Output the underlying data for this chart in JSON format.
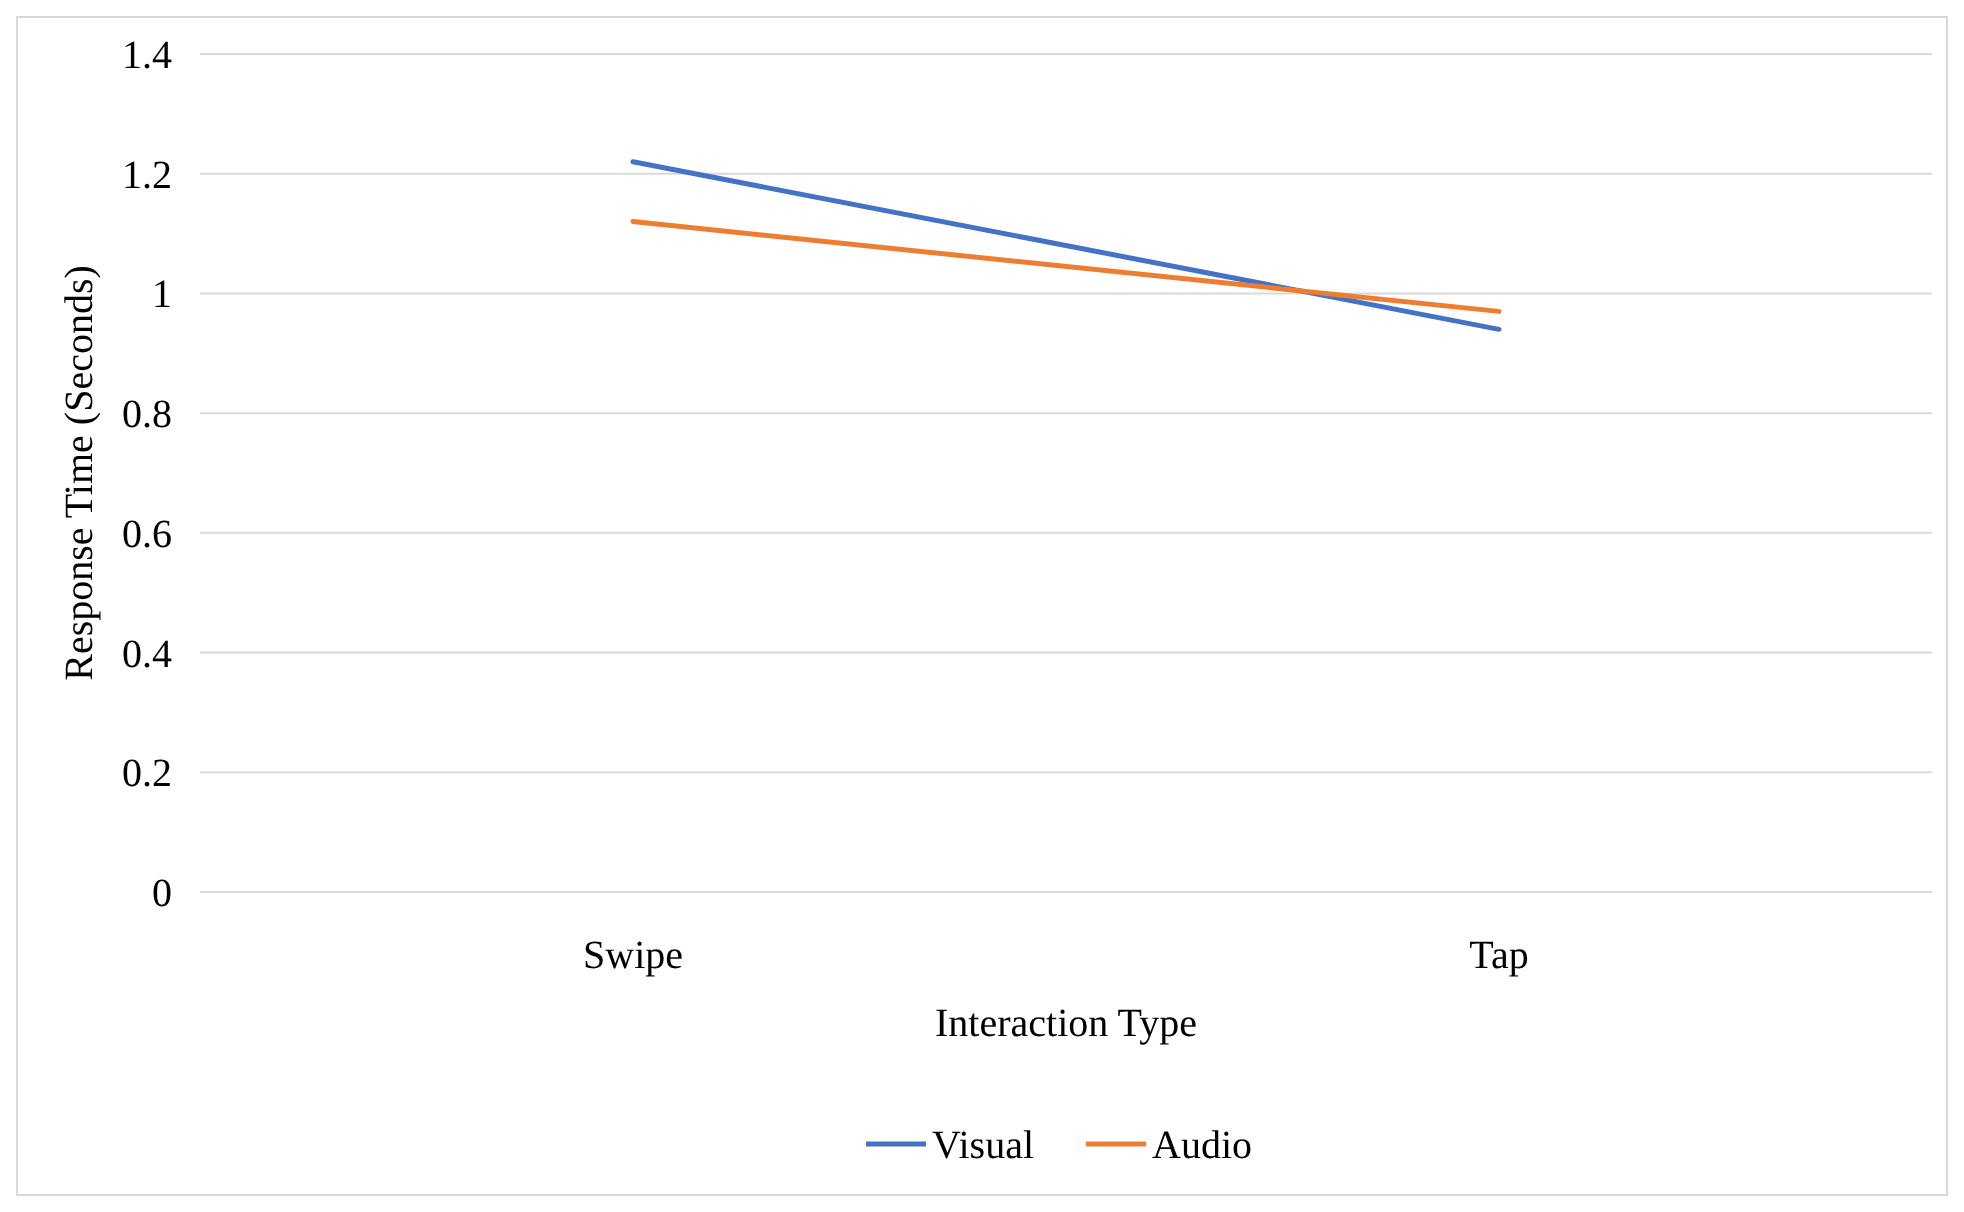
{
  "chart_data": {
    "type": "line",
    "xlabel": "Interaction Type",
    "ylabel": "Response Time (Seconds)",
    "categories": [
      "Swipe",
      "Tap"
    ],
    "series": [
      {
        "name": "Visual",
        "color": "#4472c4",
        "values": [
          1.22,
          0.94
        ]
      },
      {
        "name": "Audio",
        "color": "#ed7d31",
        "values": [
          1.12,
          0.97
        ]
      }
    ],
    "ylim": [
      0,
      1.4
    ],
    "yticks": [
      0,
      0.2,
      0.4,
      0.6,
      0.8,
      1,
      1.2,
      1.4
    ],
    "grid": "y",
    "legend": "bottom",
    "marker": "none"
  }
}
